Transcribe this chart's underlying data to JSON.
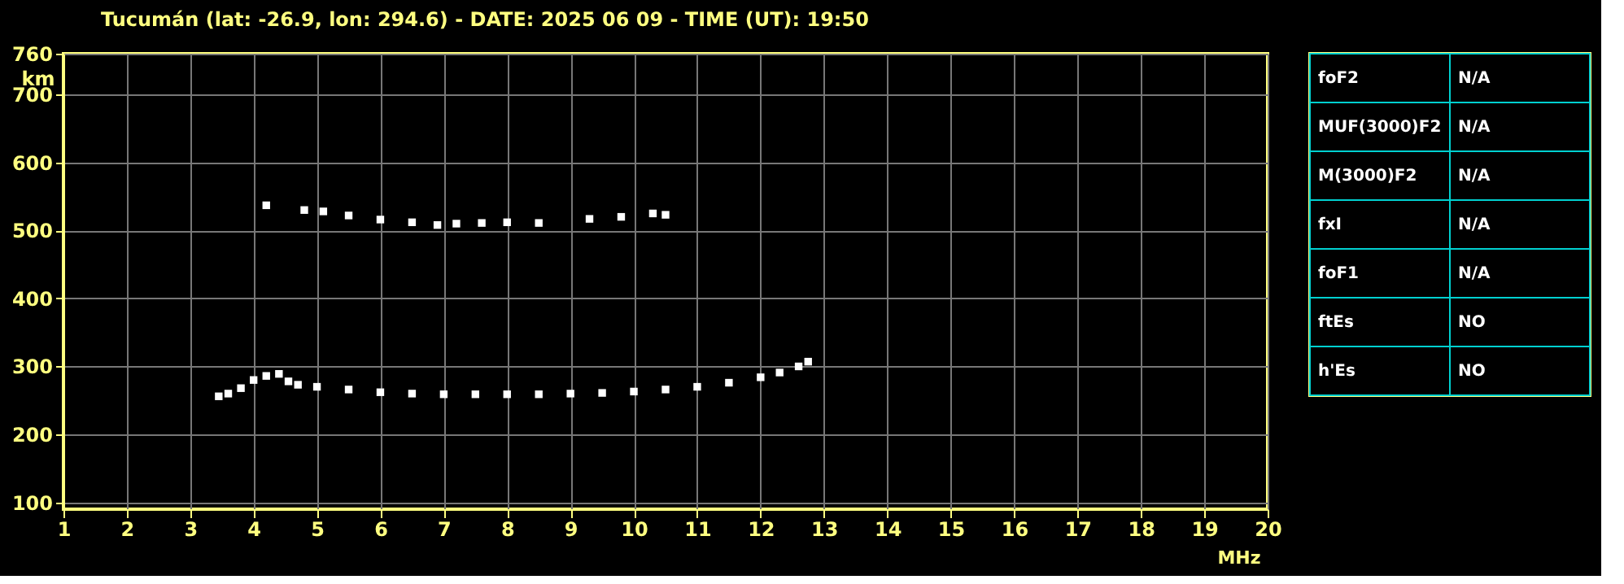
{
  "chart_data": [
    {
      "type": "scatter",
      "title": "Tucumán (lat: -26.9, lon: 294.6) - DATE: 2025 06 09 - TIME (UT): 19:50",
      "xlabel": "MHz",
      "ylabel": "km",
      "xlim": [
        1,
        20
      ],
      "ylim": [
        90,
        760
      ],
      "xticks": [
        1,
        2,
        3,
        4,
        5,
        6,
        7,
        8,
        9,
        10,
        11,
        12,
        13,
        14,
        15,
        16,
        17,
        18,
        19,
        20
      ],
      "yticks": [
        100,
        200,
        300,
        400,
        500,
        600,
        700,
        760
      ],
      "grid": true,
      "marker": "square",
      "legend": false,
      "series": [
        {
          "color": "#ffffff",
          "x": [
            3.45,
            3.6,
            3.8,
            4.0,
            4.2,
            4.4,
            4.55,
            4.7,
            5.0,
            5.5,
            6.0,
            6.5,
            7.0,
            7.5,
            8.0,
            8.5,
            9.0,
            9.5,
            10.0,
            10.5,
            11.0,
            11.5,
            12.0,
            12.3,
            12.6,
            12.75
          ],
          "values": [
            256,
            260,
            268,
            280,
            286,
            289,
            278,
            273,
            270,
            266,
            262,
            260,
            259,
            259,
            259,
            259,
            260,
            261,
            263,
            266,
            270,
            276,
            284,
            291,
            300,
            307
          ]
        },
        {
          "color": "#ffffff",
          "x": [
            4.2,
            4.8,
            5.1,
            5.5,
            6.0,
            6.5,
            6.9,
            7.2,
            7.6,
            8.0,
            8.5,
            9.3,
            9.8,
            10.3,
            10.5
          ],
          "values": [
            537,
            530,
            528,
            522,
            516,
            512,
            508,
            510,
            511,
            512,
            511,
            517,
            520,
            525,
            523
          ]
        }
      ]
    },
    {
      "type": "other",
      "annotations": [
        "foF2",
        "N/A",
        "MUF(3000)F2",
        "N/A",
        "M(3000)F2",
        "N/A",
        "fxI",
        "N/A",
        "foF1",
        "N/A",
        "ftEs",
        "NO",
        "h'Es",
        "NO"
      ]
    }
  ]
}
